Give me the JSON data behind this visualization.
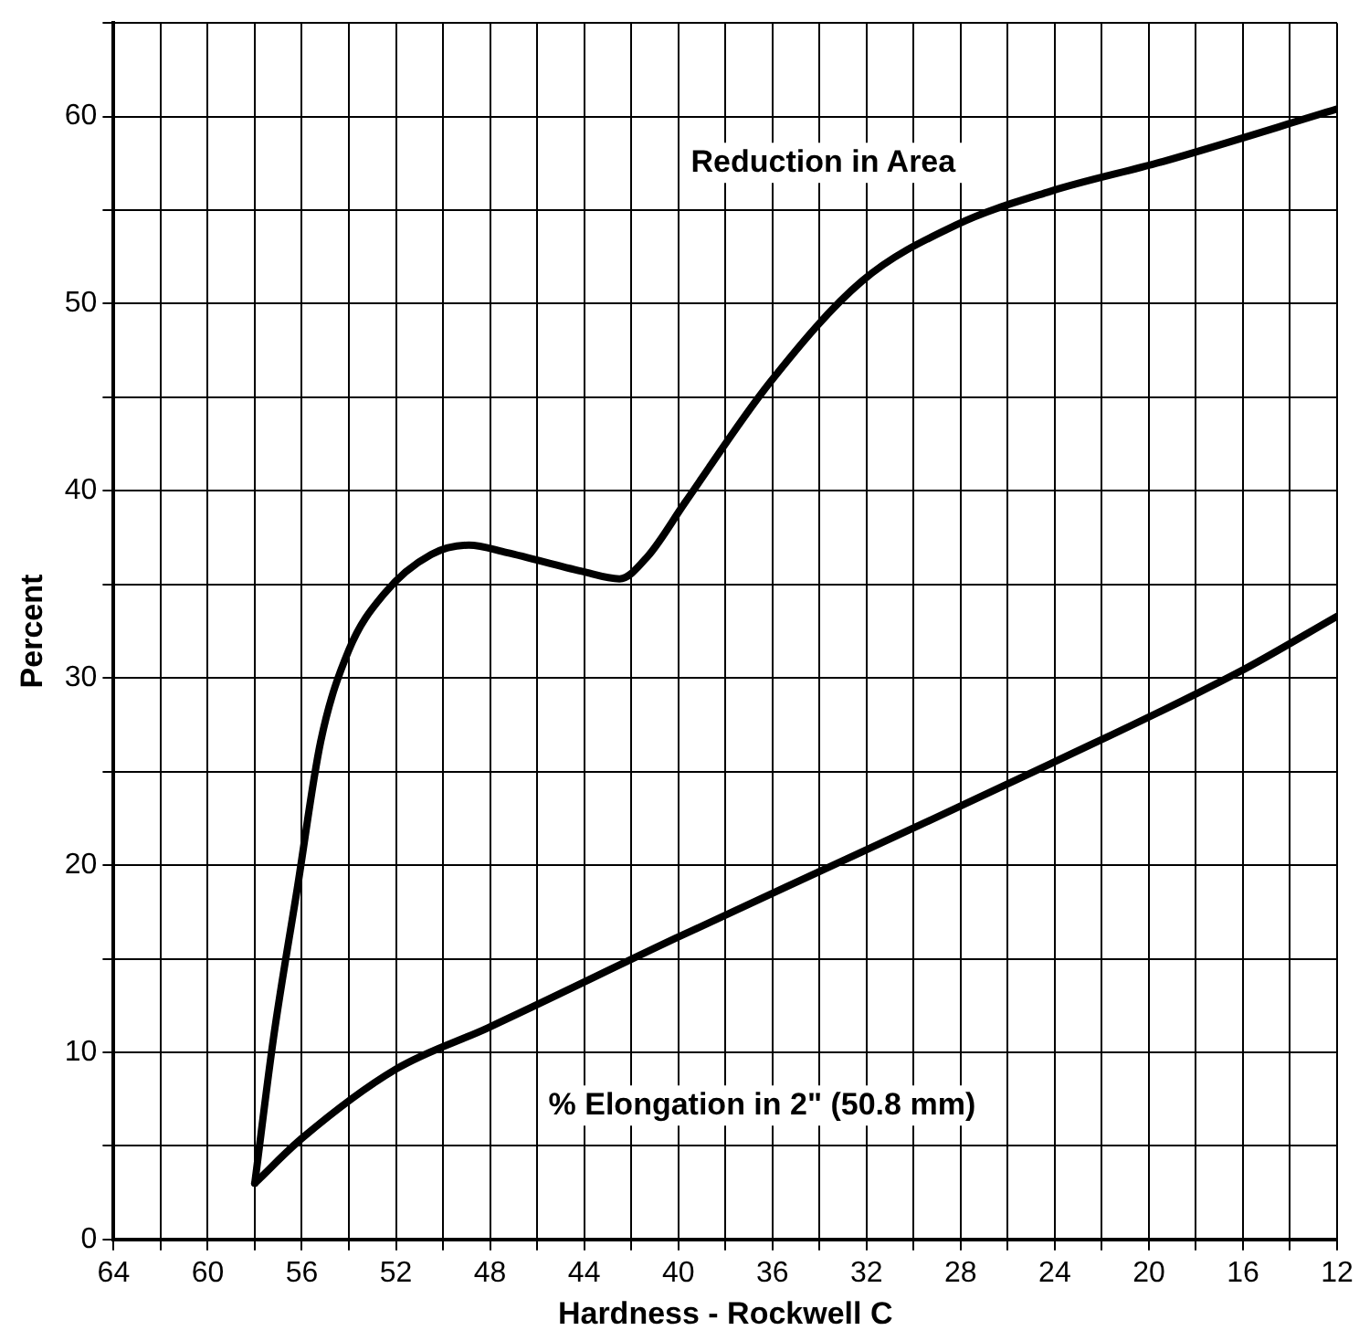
{
  "chart_data": {
    "type": "line",
    "xlabel": "Hardness - Rockwell C",
    "ylabel": "Percent",
    "xlim": [
      64,
      12
    ],
    "xticks": [
      64,
      {
        "value": 62,
        "label": null
      },
      60,
      {
        "value": 58,
        "label": null
      },
      56,
      {
        "value": 54,
        "label": null
      },
      52,
      {
        "value": 50,
        "label": null
      },
      48,
      {
        "value": 46,
        "label": null
      },
      44,
      {
        "value": 42,
        "label": null
      },
      40,
      {
        "value": 38,
        "label": null
      },
      36,
      {
        "value": 34,
        "label": null
      },
      32,
      {
        "value": 30,
        "label": null
      },
      28,
      {
        "value": 26,
        "label": null
      },
      24,
      {
        "value": 22,
        "label": null
      },
      20,
      {
        "value": 18,
        "label": null
      },
      16,
      {
        "value": 14,
        "label": null
      },
      12
    ],
    "ylim": [
      0,
      65
    ],
    "yticks": [
      0,
      {
        "value": 5,
        "label": null
      },
      10,
      {
        "value": 15,
        "label": null
      },
      20,
      {
        "value": 25,
        "label": null
      },
      30,
      {
        "value": 35,
        "label": null
      },
      40,
      {
        "value": 45,
        "label": null
      },
      50,
      {
        "value": 55,
        "label": null
      },
      60,
      {
        "value": 65,
        "label": null
      }
    ],
    "grid": true,
    "legend": false,
    "marker": "none",
    "line_style": "solid",
    "series": [
      {
        "name": "Reduction in Area",
        "color": "#000000",
        "x": [
          58,
          57.2,
          56.2,
          55.2,
          54,
          52.5,
          50.5,
          48.9,
          47.3,
          44.1,
          42.5,
          41.3,
          39.7,
          36.1,
          32.2,
          28.2,
          24.2,
          19.4,
          12
        ],
        "values": [
          3,
          10.8,
          18.7,
          26.6,
          31.5,
          34.5,
          36.6,
          37.1,
          36.7,
          35.7,
          35.3,
          36.5,
          39.4,
          45.8,
          51.2,
          54.2,
          56,
          57.6,
          60.4
        ]
      },
      {
        "name": "% Elongation in 2\" (50.8 mm)",
        "color": "#000000",
        "x": [
          58,
          56,
          52,
          48.1,
          40.1,
          32.2,
          24.2,
          16.2,
          12
        ],
        "values": [
          3,
          5.4,
          9.1,
          11.3,
          16.1,
          20.7,
          25.4,
          30.3,
          33.3
        ]
      }
    ]
  }
}
